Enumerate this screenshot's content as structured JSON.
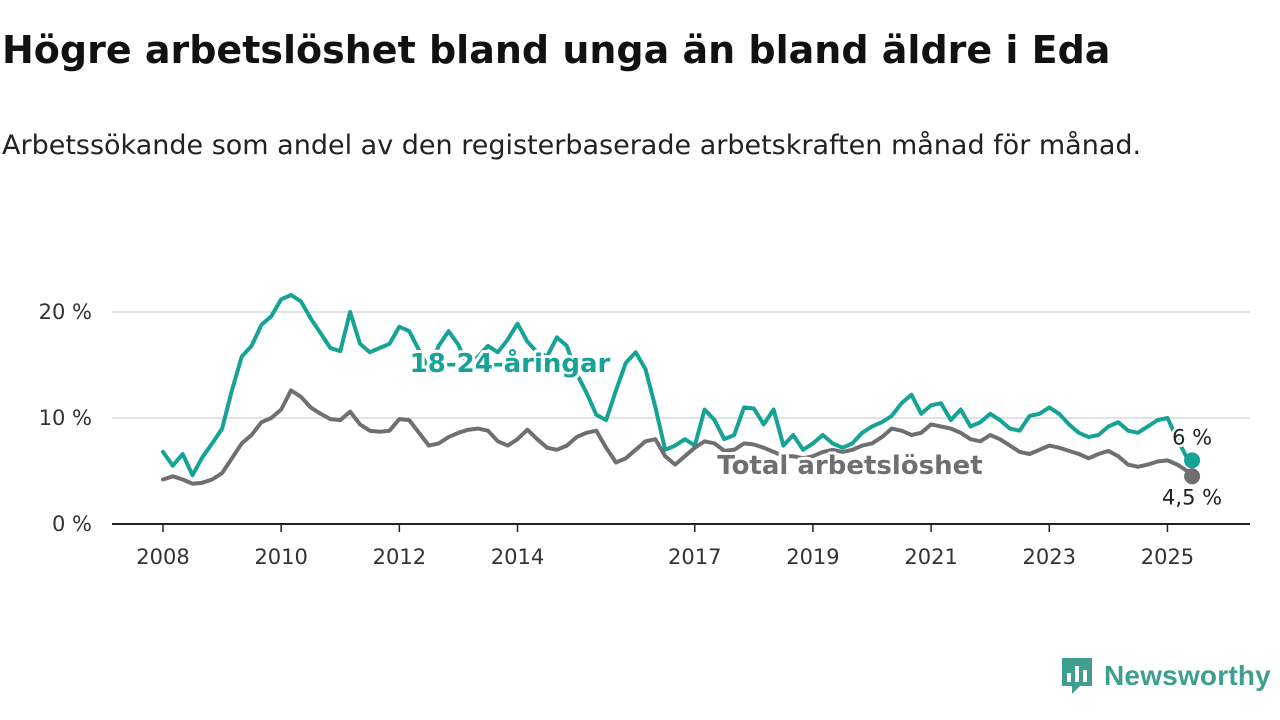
{
  "title": "Högre arbetslöshet bland unga än bland äldre i Eda",
  "subtitle": "Arbetssökande som andel av den registerbaserade arbetskraften månad för månad.",
  "logo": {
    "text": "Newsworthy",
    "icon": "newsworthy-chart-bubble-icon",
    "color": "#3e9e8f"
  },
  "chart_data": {
    "type": "line",
    "title": "Högre arbetslöshet bland unga än bland äldre i Eda",
    "x_ticks": [
      "2008",
      "2010",
      "2012",
      "2014",
      "2017",
      "2019",
      "2021",
      "2023",
      "2025"
    ],
    "y_ticks": [
      "0 %",
      "10 %",
      "20 %"
    ],
    "xlim": [
      "2008-01",
      "2025-07"
    ],
    "ylim": [
      0,
      22
    ],
    "grid": "horizontal",
    "legend": "direct labels on lines",
    "series": [
      {
        "name": "18-24-åringar",
        "color": "#14a396",
        "end_label": "6 %",
        "points": [
          [
            "2008-01",
            6.8
          ],
          [
            "2008-03",
            5.5
          ],
          [
            "2008-05",
            6.6
          ],
          [
            "2008-07",
            4.6
          ],
          [
            "2008-09",
            6.3
          ],
          [
            "2008-11",
            7.6
          ],
          [
            "2009-01",
            9.0
          ],
          [
            "2009-03",
            12.6
          ],
          [
            "2009-05",
            15.8
          ],
          [
            "2009-07",
            16.8
          ],
          [
            "2009-09",
            18.8
          ],
          [
            "2009-11",
            19.6
          ],
          [
            "2010-01",
            21.2
          ],
          [
            "2010-03",
            21.6
          ],
          [
            "2010-05",
            21.0
          ],
          [
            "2010-07",
            19.4
          ],
          [
            "2010-09",
            18.0
          ],
          [
            "2010-11",
            16.6
          ],
          [
            "2011-01",
            16.3
          ],
          [
            "2011-03",
            20.0
          ],
          [
            "2011-05",
            17.0
          ],
          [
            "2011-07",
            16.2
          ],
          [
            "2011-09",
            16.6
          ],
          [
            "2011-11",
            17.0
          ],
          [
            "2012-01",
            18.6
          ],
          [
            "2012-03",
            18.2
          ],
          [
            "2012-05",
            16.4
          ],
          [
            "2012-07",
            14.6
          ],
          [
            "2012-09",
            16.8
          ],
          [
            "2012-11",
            18.2
          ],
          [
            "2013-01",
            16.9
          ],
          [
            "2013-03",
            14.8
          ],
          [
            "2013-05",
            15.8
          ],
          [
            "2013-07",
            16.8
          ],
          [
            "2013-09",
            16.2
          ],
          [
            "2013-11",
            17.4
          ],
          [
            "2014-01",
            18.9
          ],
          [
            "2014-03",
            17.2
          ],
          [
            "2014-05",
            16.2
          ],
          [
            "2014-07",
            15.8
          ],
          [
            "2014-09",
            17.6
          ],
          [
            "2014-11",
            16.8
          ],
          [
            "2015-01",
            14.2
          ],
          [
            "2015-03",
            12.4
          ],
          [
            "2015-05",
            10.3
          ],
          [
            "2015-07",
            9.8
          ],
          [
            "2015-09",
            12.6
          ],
          [
            "2015-11",
            15.2
          ],
          [
            "2016-01",
            16.2
          ],
          [
            "2016-03",
            14.6
          ],
          [
            "2016-05",
            11.0
          ],
          [
            "2016-07",
            7.0
          ],
          [
            "2016-09",
            7.4
          ],
          [
            "2016-11",
            8.0
          ],
          [
            "2017-01",
            7.4
          ],
          [
            "2017-03",
            10.8
          ],
          [
            "2017-05",
            9.8
          ],
          [
            "2017-07",
            8.0
          ],
          [
            "2017-09",
            8.4
          ],
          [
            "2017-11",
            11.0
          ],
          [
            "2018-01",
            10.9
          ],
          [
            "2018-03",
            9.4
          ],
          [
            "2018-05",
            10.8
          ],
          [
            "2018-07",
            7.4
          ],
          [
            "2018-09",
            8.4
          ],
          [
            "2018-11",
            7.0
          ],
          [
            "2019-01",
            7.6
          ],
          [
            "2019-03",
            8.4
          ],
          [
            "2019-05",
            7.6
          ],
          [
            "2019-07",
            7.2
          ],
          [
            "2019-09",
            7.6
          ],
          [
            "2019-11",
            8.6
          ],
          [
            "2020-01",
            9.2
          ],
          [
            "2020-03",
            9.6
          ],
          [
            "2020-05",
            10.2
          ],
          [
            "2020-07",
            11.4
          ],
          [
            "2020-09",
            12.2
          ],
          [
            "2020-11",
            10.4
          ],
          [
            "2021-01",
            11.2
          ],
          [
            "2021-03",
            11.4
          ],
          [
            "2021-05",
            9.8
          ],
          [
            "2021-07",
            10.8
          ],
          [
            "2021-09",
            9.2
          ],
          [
            "2021-11",
            9.6
          ],
          [
            "2022-01",
            10.4
          ],
          [
            "2022-03",
            9.8
          ],
          [
            "2022-05",
            9.0
          ],
          [
            "2022-07",
            8.8
          ],
          [
            "2022-09",
            10.2
          ],
          [
            "2022-11",
            10.4
          ],
          [
            "2023-01",
            11.0
          ],
          [
            "2023-03",
            10.4
          ],
          [
            "2023-05",
            9.4
          ],
          [
            "2023-07",
            8.6
          ],
          [
            "2023-09",
            8.2
          ],
          [
            "2023-11",
            8.4
          ],
          [
            "2024-01",
            9.2
          ],
          [
            "2024-03",
            9.6
          ],
          [
            "2024-05",
            8.8
          ],
          [
            "2024-07",
            8.6
          ],
          [
            "2024-09",
            9.2
          ],
          [
            "2024-11",
            9.8
          ],
          [
            "2025-01",
            10.0
          ],
          [
            "2025-03",
            8.0
          ],
          [
            "2025-05",
            6.2
          ],
          [
            "2025-06",
            6.0
          ]
        ]
      },
      {
        "name": "Total arbetslöshet",
        "color": "#6f6e71",
        "end_label": "4,5 %",
        "points": [
          [
            "2008-01",
            4.2
          ],
          [
            "2008-03",
            4.5
          ],
          [
            "2008-05",
            4.2
          ],
          [
            "2008-07",
            3.8
          ],
          [
            "2008-09",
            3.9
          ],
          [
            "2008-11",
            4.2
          ],
          [
            "2009-01",
            4.8
          ],
          [
            "2009-03",
            6.2
          ],
          [
            "2009-05",
            7.6
          ],
          [
            "2009-07",
            8.4
          ],
          [
            "2009-09",
            9.6
          ],
          [
            "2009-11",
            10.0
          ],
          [
            "2010-01",
            10.8
          ],
          [
            "2010-03",
            12.6
          ],
          [
            "2010-05",
            12.0
          ],
          [
            "2010-07",
            11.0
          ],
          [
            "2010-09",
            10.4
          ],
          [
            "2010-11",
            9.9
          ],
          [
            "2011-01",
            9.8
          ],
          [
            "2011-03",
            10.6
          ],
          [
            "2011-05",
            9.4
          ],
          [
            "2011-07",
            8.8
          ],
          [
            "2011-09",
            8.7
          ],
          [
            "2011-11",
            8.8
          ],
          [
            "2012-01",
            9.9
          ],
          [
            "2012-03",
            9.8
          ],
          [
            "2012-05",
            8.6
          ],
          [
            "2012-07",
            7.4
          ],
          [
            "2012-09",
            7.6
          ],
          [
            "2012-11",
            8.2
          ],
          [
            "2013-01",
            8.6
          ],
          [
            "2013-03",
            8.9
          ],
          [
            "2013-05",
            9.0
          ],
          [
            "2013-07",
            8.8
          ],
          [
            "2013-09",
            7.8
          ],
          [
            "2013-11",
            7.4
          ],
          [
            "2014-01",
            8.0
          ],
          [
            "2014-03",
            8.9
          ],
          [
            "2014-05",
            8.0
          ],
          [
            "2014-07",
            7.2
          ],
          [
            "2014-09",
            7.0
          ],
          [
            "2014-11",
            7.4
          ],
          [
            "2015-01",
            8.2
          ],
          [
            "2015-03",
            8.6
          ],
          [
            "2015-05",
            8.8
          ],
          [
            "2015-07",
            7.2
          ],
          [
            "2015-09",
            5.8
          ],
          [
            "2015-11",
            6.2
          ],
          [
            "2016-01",
            7.0
          ],
          [
            "2016-03",
            7.8
          ],
          [
            "2016-05",
            8.0
          ],
          [
            "2016-07",
            6.4
          ],
          [
            "2016-09",
            5.6
          ],
          [
            "2016-11",
            6.4
          ],
          [
            "2017-01",
            7.2
          ],
          [
            "2017-03",
            7.8
          ],
          [
            "2017-05",
            7.6
          ],
          [
            "2017-07",
            6.9
          ],
          [
            "2017-09",
            7.0
          ],
          [
            "2017-11",
            7.6
          ],
          [
            "2018-01",
            7.5
          ],
          [
            "2018-03",
            7.2
          ],
          [
            "2018-05",
            6.8
          ],
          [
            "2018-07",
            6.4
          ],
          [
            "2018-09",
            6.4
          ],
          [
            "2018-11",
            6.2
          ],
          [
            "2019-01",
            6.4
          ],
          [
            "2019-03",
            6.8
          ],
          [
            "2019-05",
            7.0
          ],
          [
            "2019-07",
            6.8
          ],
          [
            "2019-09",
            7.0
          ],
          [
            "2019-11",
            7.4
          ],
          [
            "2020-01",
            7.6
          ],
          [
            "2020-03",
            8.2
          ],
          [
            "2020-05",
            9.0
          ],
          [
            "2020-07",
            8.8
          ],
          [
            "2020-09",
            8.4
          ],
          [
            "2020-11",
            8.6
          ],
          [
            "2021-01",
            9.4
          ],
          [
            "2021-03",
            9.2
          ],
          [
            "2021-05",
            9.0
          ],
          [
            "2021-07",
            8.6
          ],
          [
            "2021-09",
            8.0
          ],
          [
            "2021-11",
            7.8
          ],
          [
            "2022-01",
            8.4
          ],
          [
            "2022-03",
            8.0
          ],
          [
            "2022-05",
            7.4
          ],
          [
            "2022-07",
            6.8
          ],
          [
            "2022-09",
            6.6
          ],
          [
            "2022-11",
            7.0
          ],
          [
            "2023-01",
            7.4
          ],
          [
            "2023-03",
            7.2
          ],
          [
            "2023-05",
            6.9
          ],
          [
            "2023-07",
            6.6
          ],
          [
            "2023-09",
            6.2
          ],
          [
            "2023-11",
            6.6
          ],
          [
            "2024-01",
            6.9
          ],
          [
            "2024-03",
            6.4
          ],
          [
            "2024-05",
            5.6
          ],
          [
            "2024-07",
            5.4
          ],
          [
            "2024-09",
            5.6
          ],
          [
            "2024-11",
            5.9
          ],
          [
            "2025-01",
            6.0
          ],
          [
            "2025-03",
            5.6
          ],
          [
            "2025-05",
            5.0
          ],
          [
            "2025-06",
            4.5
          ]
        ]
      }
    ]
  }
}
